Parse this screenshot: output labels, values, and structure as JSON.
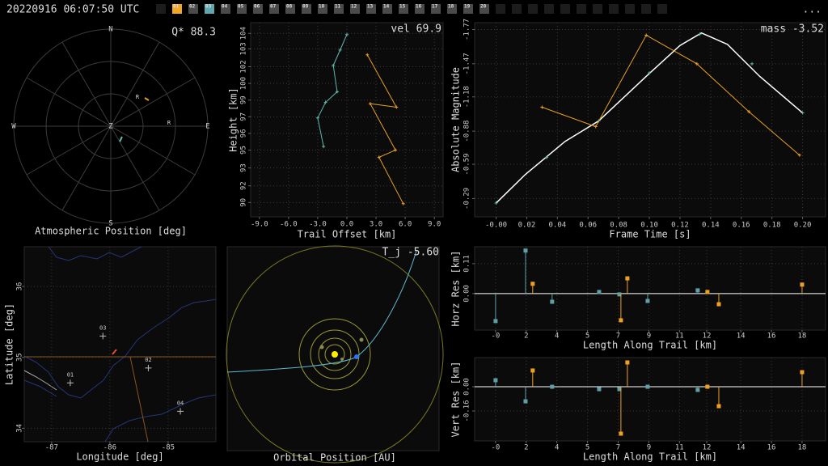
{
  "header": {
    "timestamp": "20220916 06:07:50 UTC",
    "tabs": [
      "01",
      "02",
      "03",
      "04",
      "05",
      "06",
      "07",
      "08",
      "09",
      "10",
      "11",
      "12",
      "13",
      "14",
      "15",
      "16",
      "17",
      "18",
      "19",
      "20"
    ],
    "tab_colors": [
      "#f5a623",
      "#4a4a4a",
      "#5fa8b0",
      "#4a4a4a",
      "#4a4a4a",
      "#4a4a4a",
      "#4a4a4a",
      "#4a4a4a",
      "#4a4a4a",
      "#4a4a4a",
      "#4a4a4a",
      "#4a4a4a",
      "#4a4a4a",
      "#4a4a4a",
      "#4a4a4a",
      "#4a4a4a",
      "#4a4a4a",
      "#4a4a4a",
      "#4a4a4a",
      "#4a4a4a"
    ],
    "menu": "..."
  },
  "sky": {
    "annotation": "Q* 88.3",
    "caption": "Atmospheric Position [deg]",
    "compass": [
      "N",
      "E",
      "S",
      "W",
      "Z"
    ],
    "markers": [
      "R",
      "R"
    ]
  },
  "orbit": {
    "annotation": "T_j -5.60",
    "caption": "Orbital Position [AU]"
  },
  "chart_data": [
    {
      "type": "line",
      "annotation": "vel 69.9",
      "xlabel": "Trail Offset [km]",
      "ylabel": "Height [km]",
      "xlim": [
        -9.9,
        9.9
      ],
      "ylim": [
        89.0,
        105.3
      ],
      "grid": true,
      "xticks": [
        {
          "value": -9,
          "label": "-9.0"
        },
        {
          "value": -6,
          "label": "-6.0"
        },
        {
          "value": -3,
          "label": "-3.0"
        },
        {
          "value": 0,
          "label": "0.0"
        },
        {
          "value": 3,
          "label": "3.0"
        },
        {
          "value": 6,
          "label": "6.0"
        },
        {
          "value": 9,
          "label": "9.0"
        }
      ],
      "yticks": [
        {
          "value": 90.2,
          "label": "90"
        },
        {
          "value": 91.6,
          "label": "92"
        },
        {
          "value": 93.1,
          "label": "93"
        },
        {
          "value": 94.6,
          "label": "95"
        },
        {
          "value": 96.0,
          "label": "96"
        },
        {
          "value": 97.4,
          "label": "97"
        },
        {
          "value": 98.8,
          "label": "99"
        },
        {
          "value": 100.2,
          "label": "100"
        },
        {
          "value": 101.6,
          "label": "102"
        },
        {
          "value": 103.1,
          "label": "103"
        },
        {
          "value": 104.4,
          "label": "104"
        }
      ],
      "series": [
        {
          "color": "#5fb8b0",
          "mode": "line+markers",
          "x": [
            0.0,
            -0.7,
            -1.4,
            -1.0,
            -2.2,
            -3.0,
            -2.4
          ],
          "y": [
            104.3,
            103.0,
            101.7,
            99.5,
            98.6,
            97.3,
            94.9
          ]
        },
        {
          "color": "#e8a020",
          "mode": "line+markers",
          "x": [
            2.1,
            5.1,
            2.4,
            5.0,
            3.3,
            5.8
          ],
          "y": [
            102.6,
            98.2,
            98.5,
            94.6,
            94.0,
            90.1
          ]
        }
      ]
    },
    {
      "type": "line",
      "annotation": "mass -3.52",
      "xlabel": "Frame Time [s]",
      "ylabel": "Absolute Magnitude",
      "xlim": [
        -0.014,
        0.215
      ],
      "ylim": [
        -0.13,
        -1.83
      ],
      "grid": true,
      "xticks": [
        {
          "value": 0,
          "label": "-0.00"
        },
        0.02,
        0.04,
        0.06,
        0.08,
        {
          "value": 0.1,
          "label": "0.10"
        },
        0.12,
        0.14,
        0.16,
        0.18,
        {
          "value": 0.2,
          "label": "0.20"
        }
      ],
      "yticks": [
        -0.29,
        -0.59,
        -0.88,
        -1.18,
        -1.47,
        -1.77
      ],
      "series": [
        {
          "color": "#ffffff",
          "mode": "line",
          "x": [
            0.0,
            0.019,
            0.045,
            0.067,
            0.098,
            0.12,
            0.134,
            0.151,
            0.172,
            0.2
          ],
          "y": [
            -0.25,
            -0.5,
            -0.79,
            -0.97,
            -1.36,
            -1.63,
            -1.74,
            -1.64,
            -1.36,
            -1.04
          ]
        },
        {
          "color": "#5fb8b0",
          "mode": "markers",
          "x": [
            0.0,
            0.033,
            0.067,
            0.1,
            0.133,
            0.167,
            0.2
          ],
          "y": [
            -0.25,
            -0.65,
            -0.97,
            -1.39,
            -1.73,
            -1.47,
            -1.04
          ]
        },
        {
          "color": "#e8a020",
          "mode": "line+markers",
          "x": [
            0.03,
            0.065,
            0.098,
            0.131,
            0.165,
            0.198
          ],
          "y": [
            -1.09,
            -0.92,
            -1.72,
            -1.47,
            -1.05,
            -0.67
          ]
        }
      ]
    },
    {
      "type": "scatter",
      "xlabel": "Longitude [deg]",
      "ylabel": "Latitude [deg]",
      "xlim": [
        -87.47,
        -84.18
      ],
      "ylim": [
        33.81,
        36.56
      ],
      "grid": true,
      "xticks": [
        -87,
        -86,
        -85
      ],
      "yticks": [
        34,
        35,
        36
      ],
      "series": [
        {
          "color": "#bbbbbb",
          "mode": "markers",
          "x": [
            -86.68,
            -85.34,
            -86.12,
            -84.79
          ],
          "y": [
            34.64,
            34.85,
            35.3,
            34.24
          ],
          "labels": [
            "01",
            "02",
            "03",
            "04"
          ]
        }
      ]
    },
    {
      "type": "stem",
      "xlabel": "Length Along Trail [km]",
      "ylabel": "Horz Res [km]",
      "xlim": [
        -1.23,
        19.38
      ],
      "ylim": [
        -0.134,
        0.172
      ],
      "grid": true,
      "xticks": [
        {
          "value": 0,
          "label": "-0"
        },
        {
          "value": 1.8,
          "label": "2"
        },
        {
          "value": 3.6,
          "label": "4"
        },
        {
          "value": 5.4,
          "label": "5"
        },
        {
          "value": 7.2,
          "label": "7"
        },
        {
          "value": 9.0,
          "label": "9"
        },
        {
          "value": 10.8,
          "label": "11"
        },
        {
          "value": 12.4,
          "label": "12"
        },
        {
          "value": 14.4,
          "label": "14"
        },
        {
          "value": 16.2,
          "label": "16"
        },
        {
          "value": 18.0,
          "label": "18"
        }
      ],
      "yticks": [
        {
          "value": 0,
          "label": "0.00"
        },
        0.11
      ],
      "series": [
        {
          "color": "#5fa0a8",
          "mode": "stem",
          "x": [
            0.0,
            1.76,
            3.32,
            6.08,
            7.27,
            8.93,
            11.87
          ],
          "y": [
            -0.101,
            0.158,
            -0.03,
            0.006,
            -0.003,
            -0.027,
            0.012
          ]
        },
        {
          "color": "#f0a020",
          "mode": "stem",
          "x": [
            2.18,
            7.36,
            7.74,
            12.44,
            13.11,
            18.0
          ],
          "y": [
            0.036,
            -0.098,
            0.056,
            0.006,
            -0.039,
            0.033
          ]
        }
      ]
    },
    {
      "type": "stem",
      "xlabel": "Length Along Trail [km]",
      "ylabel": "Vert Res [km]",
      "xlim": [
        -1.23,
        19.38
      ],
      "ylim": [
        -0.357,
        0.192
      ],
      "grid": true,
      "xticks": [
        {
          "value": 0,
          "label": "-0"
        },
        {
          "value": 1.8,
          "label": "2"
        },
        {
          "value": 3.6,
          "label": "4"
        },
        {
          "value": 5.4,
          "label": "5"
        },
        {
          "value": 7.2,
          "label": "7"
        },
        {
          "value": 9.0,
          "label": "9"
        },
        {
          "value": 10.8,
          "label": "11"
        },
        {
          "value": 12.4,
          "label": "12"
        },
        {
          "value": 14.4,
          "label": "14"
        },
        {
          "value": 16.2,
          "label": "16"
        },
        {
          "value": 18.0,
          "label": "18"
        }
      ],
      "yticks": [
        {
          "value": 0,
          "label": "0.00"
        },
        -0.16
      ],
      "series": [
        {
          "color": "#5fa0a8",
          "mode": "stem",
          "x": [
            0.0,
            1.76,
            3.32,
            6.08,
            7.27,
            8.93,
            11.87
          ],
          "y": [
            0.043,
            -0.096,
            0.0,
            -0.016,
            -0.016,
            0.0,
            -0.021
          ]
        },
        {
          "color": "#f0a020",
          "mode": "stem",
          "x": [
            2.18,
            7.36,
            7.74,
            12.44,
            13.11,
            18.0
          ],
          "y": [
            0.107,
            -0.309,
            0.16,
            0.0,
            -0.128,
            0.096
          ]
        }
      ]
    }
  ]
}
